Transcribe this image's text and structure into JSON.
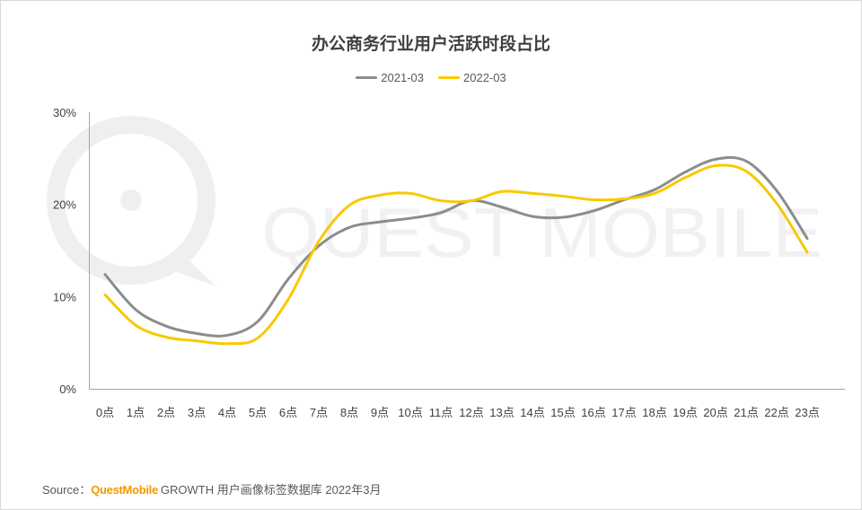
{
  "watermark": {
    "text": "QUEST MOBILE"
  },
  "chart_data": {
    "type": "line",
    "title": "办公商务行业用户活跃时段占比",
    "categories": [
      "0点",
      "1点",
      "2点",
      "3点",
      "4点",
      "5点",
      "6点",
      "7点",
      "8点",
      "9点",
      "10点",
      "11点",
      "12点",
      "13点",
      "14点",
      "15点",
      "16点",
      "17点",
      "18点",
      "19点",
      "20点",
      "21点",
      "22点",
      "23点"
    ],
    "series": [
      {
        "name": "2021-03",
        "color": "#8c8c8c",
        "values": [
          12.4,
          8.6,
          6.8,
          6.0,
          5.8,
          7.3,
          11.9,
          15.5,
          17.5,
          18.1,
          18.5,
          19.1,
          20.4,
          19.7,
          18.7,
          18.6,
          19.3,
          20.5,
          21.6,
          23.5,
          24.9,
          24.7,
          21.5,
          16.3
        ]
      },
      {
        "name": "2022-03",
        "color": "#f9c800",
        "values": [
          10.2,
          6.9,
          5.6,
          5.2,
          4.9,
          5.5,
          9.7,
          16.0,
          19.9,
          21.0,
          21.2,
          20.4,
          20.4,
          21.4,
          21.2,
          20.9,
          20.5,
          20.6,
          21.2,
          22.9,
          24.2,
          23.6,
          20.1,
          14.8
        ]
      }
    ],
    "ylim": [
      0,
      30
    ],
    "y_tick_values": [
      0,
      10,
      20,
      30
    ],
    "y_tick_labels": [
      "0%",
      "10%",
      "20%",
      "30%"
    ],
    "grid": false,
    "smooth": true,
    "legend_position": "top"
  },
  "source": {
    "prefix": "Source：",
    "brand": "QuestMobile",
    "rest": "GROWTH 用户画像标签数据库 2022年3月"
  }
}
